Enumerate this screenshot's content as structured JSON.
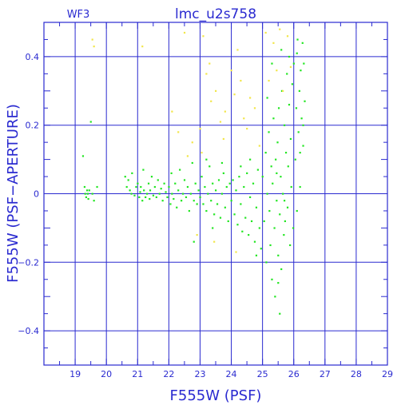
{
  "chart_data": {
    "type": "scatter",
    "title": "lmc_u2s758",
    "panel_label": "WF3",
    "xlabel": "F555W (PSF)",
    "ylabel": "F555W (PSF−APERTURE)",
    "xlim": [
      18,
      29
    ],
    "ylim": [
      -0.5,
      0.5
    ],
    "x_ticks": [
      19,
      20,
      21,
      22,
      23,
      24,
      25,
      26,
      27,
      28,
      29
    ],
    "x_tick_labels": [
      "19",
      "20",
      "21",
      "22",
      "23",
      "24",
      "25",
      "26",
      "27",
      "28",
      "29"
    ],
    "y_ticks": [
      -0.4,
      -0.2,
      0,
      0.2,
      0.4
    ],
    "y_tick_labels": [
      "−0.4",
      "−0.2",
      "0",
      "0.2",
      "0.4"
    ],
    "grid": true,
    "colors": {
      "axes": "#2a2ad0",
      "grid": "#2a2ad0",
      "primary": "#22e622",
      "secondary": "#f2e64a"
    },
    "series": [
      {
        "color": "#22e622",
        "points": [
          [
            19.25,
            0.11
          ],
          [
            19.3,
            0.02
          ],
          [
            19.32,
            0.0
          ],
          [
            19.35,
            -0.01
          ],
          [
            19.38,
            0.01
          ],
          [
            19.4,
            0.0
          ],
          [
            19.42,
            -0.015
          ],
          [
            19.45,
            0.01
          ],
          [
            19.5,
            0.21
          ],
          [
            19.55,
            0.0
          ],
          [
            19.6,
            -0.02
          ],
          [
            19.7,
            0.02
          ],
          [
            20.6,
            0.05
          ],
          [
            20.65,
            0.02
          ],
          [
            20.7,
            0.04
          ],
          [
            20.75,
            0.01
          ],
          [
            20.8,
            0.0
          ],
          [
            20.82,
            0.06
          ],
          [
            20.9,
            -0.005
          ],
          [
            20.95,
            0.02
          ],
          [
            21.0,
            0.03
          ],
          [
            21.05,
            -0.01
          ],
          [
            21.08,
            0.005
          ],
          [
            21.1,
            0.02
          ],
          [
            21.15,
            -0.02
          ],
          [
            21.18,
            0.07
          ],
          [
            21.2,
            0.01
          ],
          [
            21.25,
            -0.01
          ],
          [
            21.3,
            0.0
          ],
          [
            21.35,
            0.03
          ],
          [
            21.38,
            -0.015
          ],
          [
            21.4,
            0.01
          ],
          [
            21.45,
            0.05
          ],
          [
            21.5,
            -0.005
          ],
          [
            21.55,
            0.02
          ],
          [
            21.6,
            -0.01
          ],
          [
            21.65,
            0.04
          ],
          [
            21.7,
            0.0
          ],
          [
            21.75,
            0.015
          ],
          [
            21.8,
            -0.02
          ],
          [
            21.85,
            0.03
          ],
          [
            21.9,
            0.005
          ],
          [
            21.95,
            -0.01
          ],
          [
            22.0,
            0.02
          ],
          [
            22.05,
            -0.03
          ],
          [
            22.08,
            0.06
          ],
          [
            22.1,
            0.0
          ],
          [
            22.15,
            -0.015
          ],
          [
            22.2,
            0.03
          ],
          [
            22.25,
            -0.04
          ],
          [
            22.3,
            0.01
          ],
          [
            22.35,
            0.07
          ],
          [
            22.4,
            -0.02
          ],
          [
            22.45,
            0.0
          ],
          [
            22.5,
            0.04
          ],
          [
            22.55,
            -0.01
          ],
          [
            22.6,
            0.02
          ],
          [
            22.65,
            -0.05
          ],
          [
            22.7,
            0.0
          ],
          [
            22.75,
            0.09
          ],
          [
            22.8,
            -0.02
          ],
          [
            22.85,
            0.03
          ],
          [
            22.9,
            -0.03
          ],
          [
            22.95,
            0.01
          ],
          [
            22.8,
            -0.14
          ],
          [
            23.0,
            -0.01
          ],
          [
            23.05,
            0.05
          ],
          [
            23.1,
            -0.03
          ],
          [
            23.15,
            0.02
          ],
          [
            23.2,
            -0.05
          ],
          [
            23.25,
            0.0
          ],
          [
            23.3,
            0.08
          ],
          [
            23.35,
            -0.02
          ],
          [
            23.4,
            0.03
          ],
          [
            23.45,
            -0.06
          ],
          [
            23.5,
            0.01
          ],
          [
            23.55,
            -0.03
          ],
          [
            23.6,
            0.04
          ],
          [
            23.65,
            -0.07
          ],
          [
            23.7,
            0.0
          ],
          [
            23.75,
            0.06
          ],
          [
            23.8,
            -0.04
          ],
          [
            23.85,
            0.02
          ],
          [
            23.9,
            -0.08
          ],
          [
            23.95,
            0.03
          ],
          [
            23.4,
            -0.1
          ],
          [
            23.7,
            0.09
          ],
          [
            23.2,
            0.1
          ],
          [
            24.0,
            -0.02
          ],
          [
            24.05,
            0.04
          ],
          [
            24.1,
            -0.06
          ],
          [
            24.15,
            0.01
          ],
          [
            24.2,
            -0.09
          ],
          [
            24.25,
            0.05
          ],
          [
            24.3,
            -0.03
          ],
          [
            24.35,
            -0.11
          ],
          [
            24.4,
            0.02
          ],
          [
            24.45,
            -0.07
          ],
          [
            24.5,
            0.06
          ],
          [
            24.55,
            -0.12
          ],
          [
            24.6,
            -0.01
          ],
          [
            24.65,
            -0.08
          ],
          [
            24.7,
            0.03
          ],
          [
            24.75,
            -0.14
          ],
          [
            24.8,
            -0.04
          ],
          [
            24.85,
            0.07
          ],
          [
            24.9,
            -0.1
          ],
          [
            24.95,
            -0.16
          ],
          [
            24.3,
            0.08
          ],
          [
            24.6,
            0.1
          ],
          [
            24.8,
            -0.18
          ],
          [
            25.0,
            0.05
          ],
          [
            25.05,
            -0.08
          ],
          [
            25.1,
            0.12
          ],
          [
            25.12,
            -0.2
          ],
          [
            25.15,
            0.0
          ],
          [
            25.2,
            0.18
          ],
          [
            25.22,
            -0.05
          ],
          [
            25.25,
            -0.15
          ],
          [
            25.28,
            0.08
          ],
          [
            25.3,
            -0.25
          ],
          [
            25.32,
            0.03
          ],
          [
            25.35,
            0.22
          ],
          [
            25.38,
            -0.1
          ],
          [
            25.4,
            -0.3
          ],
          [
            25.42,
            0.1
          ],
          [
            25.45,
            -0.02
          ],
          [
            25.48,
            0.15
          ],
          [
            25.5,
            -0.18
          ],
          [
            25.52,
            0.25
          ],
          [
            25.55,
            -0.06
          ],
          [
            25.58,
            0.05
          ],
          [
            25.6,
            -0.22
          ],
          [
            25.62,
            0.3
          ],
          [
            25.65,
            0.0
          ],
          [
            25.68,
            -0.12
          ],
          [
            25.7,
            0.2
          ],
          [
            25.72,
            -0.08
          ],
          [
            25.75,
            0.12
          ],
          [
            25.78,
            0.35
          ],
          [
            25.8,
            -0.04
          ],
          [
            25.82,
            0.08
          ],
          [
            25.85,
            0.26
          ],
          [
            25.88,
            -0.15
          ],
          [
            25.9,
            0.16
          ],
          [
            25.92,
            0.02
          ],
          [
            25.95,
            0.32
          ],
          [
            25.98,
            -0.1
          ],
          [
            25.15,
            0.28
          ],
          [
            25.3,
            0.38
          ],
          [
            25.6,
            0.42
          ],
          [
            25.45,
            0.06
          ],
          [
            25.7,
            -0.02
          ],
          [
            25.55,
            -0.35
          ],
          [
            25.5,
            -0.26
          ],
          [
            25.85,
            0.4
          ],
          [
            26.0,
            0.38
          ],
          [
            26.05,
            0.1
          ],
          [
            26.08,
            0.25
          ],
          [
            26.1,
            -0.05
          ],
          [
            26.12,
            0.45
          ],
          [
            26.15,
            0.18
          ],
          [
            26.18,
            0.3
          ],
          [
            26.2,
            0.02
          ],
          [
            26.22,
            0.36
          ],
          [
            26.25,
            0.22
          ],
          [
            26.28,
            0.44
          ],
          [
            26.3,
            0.14
          ],
          [
            26.32,
            0.38
          ],
          [
            26.35,
            0.27
          ],
          [
            26.1,
            0.41
          ],
          [
            26.2,
            0.12
          ],
          [
            26.3,
            0.2
          ]
        ]
      },
      {
        "color": "#f2e64a",
        "points": [
          [
            19.55,
            0.45
          ],
          [
            19.6,
            0.43
          ],
          [
            21.15,
            0.43
          ],
          [
            22.1,
            0.24
          ],
          [
            22.3,
            0.18
          ],
          [
            22.6,
            0.11
          ],
          [
            22.75,
            0.15
          ],
          [
            23.0,
            0.19
          ],
          [
            23.05,
            0.12
          ],
          [
            23.2,
            0.35
          ],
          [
            23.3,
            0.38
          ],
          [
            23.35,
            0.27
          ],
          [
            23.5,
            0.3
          ],
          [
            23.65,
            0.21
          ],
          [
            23.75,
            0.16
          ],
          [
            23.8,
            0.24
          ],
          [
            24.0,
            0.36
          ],
          [
            24.1,
            0.29
          ],
          [
            24.2,
            0.42
          ],
          [
            24.3,
            0.33
          ],
          [
            24.4,
            0.22
          ],
          [
            24.5,
            0.19
          ],
          [
            24.6,
            0.28
          ],
          [
            24.75,
            0.25
          ],
          [
            24.9,
            0.14
          ],
          [
            25.1,
            0.47
          ],
          [
            25.2,
            0.33
          ],
          [
            25.35,
            0.44
          ],
          [
            25.45,
            0.36
          ],
          [
            25.55,
            0.48
          ],
          [
            25.65,
            0.3
          ],
          [
            25.8,
            0.46
          ],
          [
            25.9,
            0.37
          ],
          [
            22.5,
            0.47
          ],
          [
            23.1,
            0.46
          ],
          [
            22.9,
            -0.12
          ],
          [
            23.45,
            -0.14
          ],
          [
            24.15,
            -0.17
          ]
        ]
      }
    ]
  }
}
